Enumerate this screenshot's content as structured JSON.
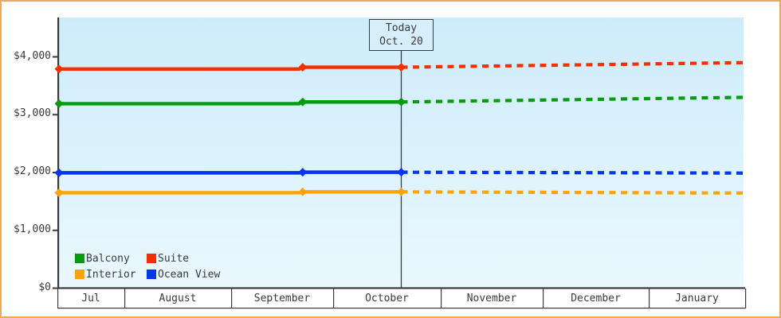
{
  "frame": {
    "border_color": "#ecaa5c",
    "background": "#ffffff"
  },
  "chart_data": {
    "type": "line",
    "title": "",
    "xlabel": "",
    "ylabel": "",
    "ylim": [
      0,
      4680
    ],
    "grid": false,
    "legend_position": "bottom-left",
    "x_axis": {
      "months": [
        "Jul",
        "August",
        "September",
        "October",
        "November",
        "December",
        "January"
      ]
    },
    "y_axis": {
      "ticks": [
        {
          "label": "$0",
          "value": 0
        },
        {
          "label": "$1,000",
          "value": 1000
        },
        {
          "label": "$2,000",
          "value": 2000
        },
        {
          "label": "$3,000",
          "value": 3000
        },
        {
          "label": "$4,000",
          "value": 4000
        }
      ]
    },
    "today": {
      "line1": "Today",
      "line2": "Oct. 20",
      "t": 0.5
    },
    "series": [
      {
        "name": "Suite",
        "color": "#f23000",
        "points": [
          {
            "t": 0,
            "v": 3790,
            "marker": true
          },
          {
            "t": 0.351,
            "v": 3790,
            "marker": false
          },
          {
            "t": 0.356,
            "v": 3820,
            "marker": true
          },
          {
            "t": 0.5,
            "v": 3820,
            "marker": true
          }
        ],
        "future": [
          {
            "t": 0.5,
            "v": 3820
          },
          {
            "t": 1,
            "v": 3900
          }
        ]
      },
      {
        "name": "Balcony",
        "color": "#089b10",
        "points": [
          {
            "t": 0,
            "v": 3190,
            "marker": true
          },
          {
            "t": 0.351,
            "v": 3190,
            "marker": false
          },
          {
            "t": 0.356,
            "v": 3220,
            "marker": true
          },
          {
            "t": 0.5,
            "v": 3220,
            "marker": true
          }
        ],
        "future": [
          {
            "t": 0.5,
            "v": 3220
          },
          {
            "t": 1,
            "v": 3300
          }
        ]
      },
      {
        "name": "Ocean View",
        "color": "#0436ee",
        "points": [
          {
            "t": 0,
            "v": 1995,
            "marker": true
          },
          {
            "t": 0.351,
            "v": 1995,
            "marker": false
          },
          {
            "t": 0.356,
            "v": 2005,
            "marker": true
          },
          {
            "t": 0.5,
            "v": 2005,
            "marker": true
          }
        ],
        "future": [
          {
            "t": 0.5,
            "v": 2005
          },
          {
            "t": 1,
            "v": 1990
          }
        ]
      },
      {
        "name": "Interior",
        "color": "#ffa400",
        "points": [
          {
            "t": 0,
            "v": 1650,
            "marker": true
          },
          {
            "t": 0.351,
            "v": 1650,
            "marker": false
          },
          {
            "t": 0.356,
            "v": 1665,
            "marker": true
          },
          {
            "t": 0.5,
            "v": 1665,
            "marker": true
          }
        ],
        "future": [
          {
            "t": 0.5,
            "v": 1665
          },
          {
            "t": 1,
            "v": 1645
          }
        ]
      }
    ],
    "legend": [
      {
        "label": "Balcony",
        "color": "#089b10"
      },
      {
        "label": "Suite",
        "color": "#f23000"
      },
      {
        "label": "Interior",
        "color": "#ffa400"
      },
      {
        "label": "Ocean View",
        "color": "#0436ee"
      }
    ],
    "style": {
      "plot_bg_top": "#cdecfa",
      "plot_bg_bottom": "#eaf8fe",
      "axis_color": "#3a3a3a",
      "today_line_color": "#3c3c3c"
    }
  }
}
